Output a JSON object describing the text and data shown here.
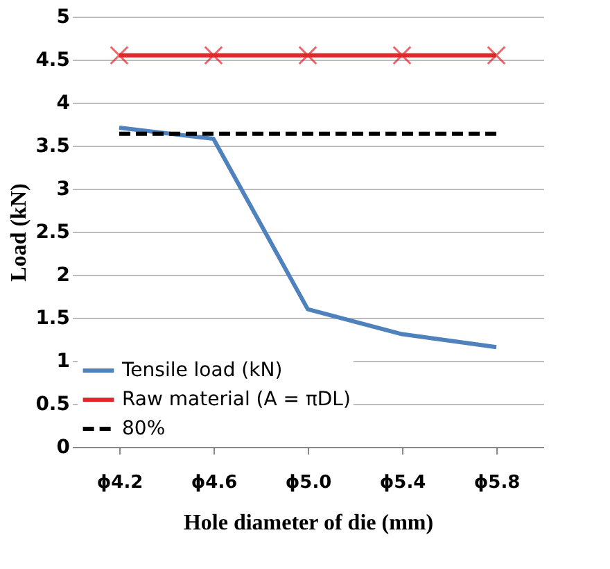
{
  "chart_data": {
    "type": "line",
    "xlabel": "Hole diameter of die (mm)",
    "ylabel": "Load (kN)",
    "categories": [
      "ϕ4.2",
      "ϕ4.6",
      "ϕ5.0",
      "ϕ5.4",
      "ϕ5.8"
    ],
    "series": [
      {
        "name": "Tensile load (kN)",
        "color": "#4f81bd",
        "values": [
          3.71,
          3.58,
          1.6,
          1.31,
          1.16
        ],
        "marker": "none",
        "line_style": "solid"
      },
      {
        "name": "Raw material (A = πDL)",
        "color": "#e3262a",
        "values": [
          4.55,
          4.55,
          4.55,
          4.55,
          4.55
        ],
        "marker": "cross",
        "line_style": "solid"
      },
      {
        "name": "80%",
        "color": "#000000",
        "values": [
          3.64,
          3.64,
          3.64,
          3.64,
          3.64
        ],
        "marker": "none",
        "line_style": "dashed"
      }
    ],
    "ylim": [
      0,
      5
    ],
    "yticks": [
      0,
      0.5,
      1,
      1.5,
      2,
      2.5,
      3,
      3.5,
      4,
      4.5,
      5
    ],
    "grid": "y",
    "legend": "bottom left"
  }
}
